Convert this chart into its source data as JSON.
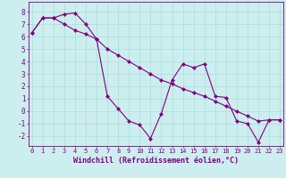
{
  "line1_x": [
    0,
    1,
    2,
    3,
    4,
    5,
    6,
    7,
    8,
    9,
    10,
    11,
    12,
    13,
    14,
    15,
    16,
    17,
    18,
    19,
    20,
    21,
    22,
    23
  ],
  "line1_y": [
    6.3,
    7.5,
    7.5,
    7.8,
    7.9,
    7.0,
    5.8,
    1.2,
    0.2,
    -0.8,
    -1.1,
    -2.2,
    -0.2,
    2.5,
    3.8,
    3.5,
    3.8,
    1.2,
    1.1,
    -0.8,
    -1.0,
    -2.5,
    -0.7,
    -0.7
  ],
  "line2_x": [
    0,
    1,
    2,
    3,
    4,
    5,
    6,
    7,
    8,
    9,
    10,
    11,
    12,
    13,
    14,
    15,
    16,
    17,
    18,
    19,
    20,
    21,
    22,
    23
  ],
  "line2_y": [
    6.3,
    7.5,
    7.5,
    7.0,
    6.5,
    6.2,
    5.8,
    5.0,
    4.5,
    4.0,
    3.5,
    3.0,
    2.5,
    2.2,
    1.8,
    1.5,
    1.2,
    0.8,
    0.4,
    0.0,
    -0.4,
    -0.8,
    -0.7,
    -0.7
  ],
  "line_color": "#800080",
  "bg_color": "#cceeee",
  "grid_color": "#aadddd",
  "ylabel_values": [
    -2,
    -1,
    0,
    1,
    2,
    3,
    4,
    5,
    6,
    7,
    8
  ],
  "ylim": [
    -2.8,
    8.8
  ],
  "xlim": [
    -0.3,
    23.3
  ],
  "xlabel": "Windchill (Refroidissement éolien,°C)",
  "xlabel_color": "#800080",
  "tick_color": "#800080",
  "tick_fontsize": 5.0,
  "label_fontsize": 6.0
}
